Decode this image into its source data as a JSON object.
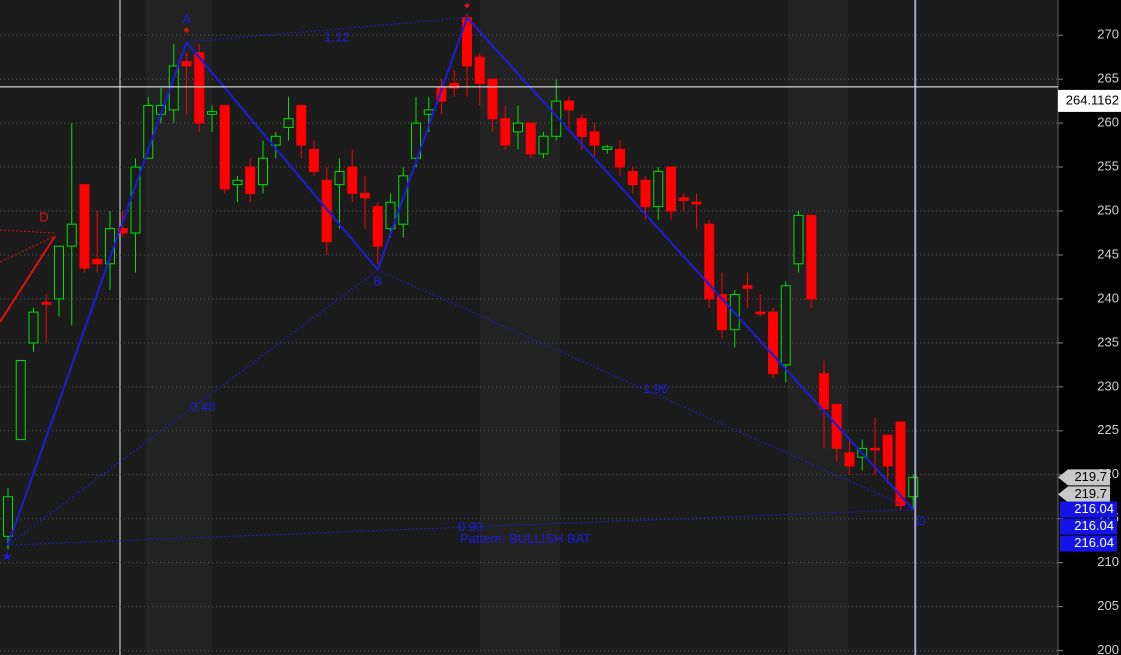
{
  "chart_data": {
    "type": "candlestick",
    "categories": [
      null,
      null,
      null,
      null,
      null,
      null,
      null,
      null,
      null,
      null,
      null,
      null,
      null,
      null,
      null,
      null,
      null,
      null,
      null,
      null,
      null,
      null,
      null,
      null,
      null,
      null,
      null,
      null,
      null,
      null,
      null,
      null,
      null,
      null,
      null,
      null,
      null,
      null,
      null,
      null,
      null,
      null,
      null,
      null,
      null,
      null,
      null,
      null,
      null,
      null,
      null,
      null,
      null,
      null,
      null,
      null,
      null,
      null,
      null,
      null,
      null,
      null,
      null,
      null,
      null,
      null,
      null,
      null,
      null,
      null,
      null,
      null
    ],
    "open": [
      213,
      224,
      235,
      239.6,
      240,
      246,
      253,
      244.5,
      244,
      248,
      247.5,
      256,
      261,
      261.5,
      267,
      268,
      261,
      262,
      253,
      255,
      253,
      257.5,
      259.5,
      262,
      257,
      253.5,
      253,
      255,
      252,
      250.5,
      248,
      248.5,
      256,
      261,
      264,
      264.5,
      272,
      267.5,
      265,
      260.5,
      259,
      260,
      256.5,
      258.5,
      262.5,
      260.5,
      259,
      257,
      257,
      254.5,
      253.5,
      250.5,
      255,
      251.5,
      251,
      248.5,
      240.5,
      236.5,
      241.5,
      238.5,
      238.5,
      232.5,
      244,
      249.5,
      231.5,
      228,
      222.5,
      222,
      223,
      224.5,
      226,
      217.5
    ],
    "high": [
      218.5,
      233,
      239,
      240.5,
      246,
      260,
      253,
      250,
      250,
      250,
      256,
      263,
      264,
      269,
      268,
      269,
      262,
      262,
      254,
      256,
      258,
      259,
      263,
      262,
      258,
      255,
      256,
      257,
      254,
      251,
      252,
      255,
      263,
      263,
      265,
      266,
      272.5,
      268,
      265,
      262,
      262,
      260,
      259,
      265,
      263,
      261,
      260,
      257.5,
      258,
      255,
      254,
      255,
      255,
      252,
      252,
      249,
      243,
      241,
      243,
      240.5,
      239,
      242,
      250,
      249.5,
      233,
      228,
      224,
      224,
      226.5,
      224.5,
      226,
      220
    ],
    "low": [
      211.5,
      224,
      234,
      235,
      238,
      237,
      243,
      243,
      241,
      247,
      243,
      256,
      260,
      260,
      261,
      259,
      259,
      252,
      251,
      251,
      252,
      256,
      258,
      256,
      254,
      245,
      248,
      251,
      248,
      244,
      247,
      247,
      255,
      259,
      261,
      263,
      263,
      262,
      259,
      257,
      257,
      256,
      256,
      258,
      259,
      257,
      256,
      256.5,
      254,
      252,
      249,
      249,
      249,
      250,
      248,
      239,
      235.5,
      234.5,
      239,
      238,
      231,
      230.5,
      243,
      239,
      223,
      221.5,
      220,
      220.5,
      220,
      219,
      216,
      216
    ],
    "close": [
      217.5,
      233,
      238.5,
      239.4,
      246,
      248.5,
      243.5,
      244,
      248,
      247.5,
      255,
      262,
      262,
      266.5,
      266.5,
      260,
      261.3,
      252.5,
      253.5,
      252,
      256,
      258.5,
      260.5,
      257.5,
      254.5,
      246.5,
      254.5,
      252,
      251.5,
      246,
      251,
      254,
      260,
      261.5,
      262.5,
      264,
      266.5,
      264.5,
      260.5,
      257.5,
      260,
      256.5,
      258.5,
      262.5,
      261.5,
      258.5,
      257.5,
      257.3,
      255,
      253,
      250.5,
      254.5,
      250,
      251.2,
      250.8,
      240,
      236.5,
      240.5,
      241.2,
      238.3,
      231.5,
      241.5,
      249.5,
      240,
      227.5,
      223,
      221,
      223,
      222.9,
      221,
      216.5,
      219.7
    ],
    "up_color": "#00e000",
    "down_color": "#ff0000",
    "ylim": [
      199.5,
      274
    ],
    "yticks": [
      200,
      205,
      210,
      215,
      220,
      225,
      230,
      235,
      240,
      245,
      250,
      255,
      260,
      265,
      270
    ],
    "grid": true,
    "pattern": {
      "name": "Pattern: BULLISH BAT",
      "color": "#1c1cd8",
      "points": {
        "X": {
          "index": 0,
          "value": 212
        },
        "A": {
          "index": 14,
          "value": 269.2,
          "label": "A"
        },
        "B": {
          "index": 29,
          "value": 243.3,
          "label": "B"
        },
        "C": {
          "index": 36,
          "value": 272
        },
        "D": {
          "index": 71,
          "value": 216.04,
          "label": "D"
        }
      },
      "ratios": {
        "AC": 1.12,
        "XB": 0.48,
        "BD": 1.96,
        "XD": 0.93
      }
    },
    "prior_pattern_label": "D",
    "crosshair": {
      "value": 264.1162,
      "index": 71
    },
    "price_tags": [
      {
        "value": 219.7,
        "color": "#c8c8c8"
      },
      {
        "value": 219.7,
        "color": "#c8c8c8"
      },
      {
        "value": 216.04,
        "color": "#1414e6"
      },
      {
        "value": 216.04,
        "color": "#1414e6"
      },
      {
        "value": 216.04,
        "color": "#1414e6"
      }
    ]
  }
}
